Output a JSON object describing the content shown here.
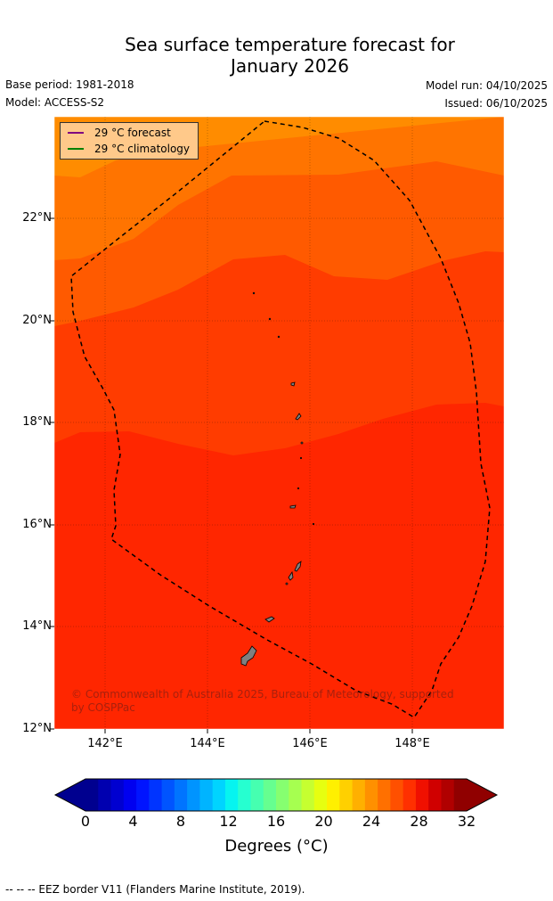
{
  "title_line1": "Sea surface temperature forecast for",
  "title_line2": "January 2026",
  "base_period": "Base period: 1981-2018",
  "model": "Model: ACCESS-S2",
  "model_run": "Model run: 04/10/2025",
  "issued": "Issued: 06/10/2025",
  "legend": {
    "forecast": "29 °C  forecast",
    "climatology": "29 °C  climatology",
    "forecast_color": "#800080",
    "climatology_color": "#008000"
  },
  "lat_labels": [
    "22°N",
    "20°N",
    "18°N",
    "16°N",
    "14°N",
    "12°N"
  ],
  "lon_labels": [
    "142°E",
    "144°E",
    "146°E",
    "148°E"
  ],
  "credit": "© Commonwealth of Australia 2025, Bureau of Meteorology, supported by COSPPac",
  "colorbar": {
    "ticks": [
      "0",
      "4",
      "8",
      "12",
      "16",
      "20",
      "24",
      "28",
      "32"
    ],
    "label": "Degrees (°C)",
    "colors": [
      "#00008f",
      "#0000b0",
      "#0000d0",
      "#0000f0",
      "#0014ff",
      "#0034ff",
      "#0054ff",
      "#0074ff",
      "#0094ff",
      "#00b4ff",
      "#00d4ff",
      "#06f4f0",
      "#26ffd0",
      "#46ffb0",
      "#66ff90",
      "#86ff70",
      "#a6ff50",
      "#c6ff30",
      "#e6ff10",
      "#fff000",
      "#ffd000",
      "#ffb000",
      "#ff9000",
      "#ff7000",
      "#ff5000",
      "#ff3000",
      "#f01000",
      "#d00000",
      "#b00000",
      "#900000"
    ]
  },
  "temperature_bands": {
    "colors": [
      "#ff8c00",
      "#ff7400",
      "#ff5a00",
      "#ff3c00",
      "#ff2600",
      "#ff1a00"
    ]
  },
  "footer": "--  --  -- EEZ border V11 (Flanders Marine Institute, 2019)."
}
